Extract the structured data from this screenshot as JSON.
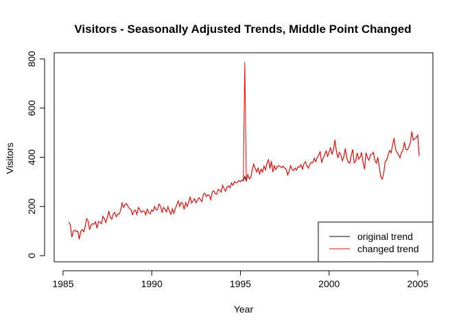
{
  "chart_data": {
    "type": "line",
    "title": "Visitors - Seasonally Adjusted Trends, Middle Point Changed",
    "xlabel": "Year",
    "ylabel": "Visitors",
    "xlim": [
      1984.5,
      2005.85
    ],
    "ylim": [
      -25,
      825
    ],
    "x_ticks": [
      1985,
      1990,
      1995,
      2000,
      2005
    ],
    "y_ticks": [
      0,
      200,
      400,
      600,
      800
    ],
    "grid": false,
    "legend_position": "bottom-right",
    "series": [
      {
        "name": "original trend",
        "color": "#000000",
        "start": 1985.33,
        "step": 0.08333,
        "values": [
          136,
          124,
          75,
          100,
          104,
          98,
          100,
          67,
          99,
          106,
          97,
          118,
          150,
          141,
          106,
          124,
          130,
          128,
          138,
          112,
          139,
          136,
          130,
          160,
          150,
          135,
          155,
          182,
          155,
          148,
          170,
          176,
          158,
          169,
          168,
          185,
          214,
          196,
          208,
          212,
          200,
          192,
          188,
          167,
          182,
          185,
          168,
          196,
          188,
          176,
          182,
          180,
          166,
          189,
          175,
          170,
          186,
          180,
          200,
          186,
          188,
          210,
          202,
          175,
          196,
          190,
          178,
          199,
          182,
          168,
          190,
          172,
          191,
          208,
          222,
          200,
          217,
          212,
          188,
          216,
          200,
          218,
          238,
          214,
          222,
          232,
          215,
          226,
          236,
          228,
          220,
          250,
          254,
          240,
          248,
          244,
          228,
          260,
          264,
          252,
          250,
          270,
          266,
          258,
          286,
          272,
          262,
          280,
          284,
          276,
          296,
          286,
          302,
          296,
          298,
          306,
          300,
          308,
          304,
          322,
          302,
          330,
          312,
          318,
          348,
          372,
          356,
          340,
          356,
          332,
          352,
          340,
          364,
          348,
          376,
          390,
          354,
          384,
          340,
          366,
          350,
          362,
          366,
          362,
          358,
          364,
          356,
          352,
          328,
          344,
          366,
          350,
          346,
          356,
          348,
          362,
          360,
          370,
          352,
          374,
          382,
          366,
          356,
          372,
          380,
          378,
          396,
          382,
          400,
          408,
          424,
          378,
          396,
          410,
          426,
          404,
          420,
          440,
          412,
          432,
          470,
          424,
          398,
          420,
          410,
          386,
          402,
          436,
          398,
          380,
          376,
          408,
          432,
          378,
          384,
          418,
          392,
          400,
          420,
          380,
          352,
          418,
          398,
          388,
          410,
          412,
          420,
          388,
          376,
          400,
          360,
          320,
          312,
          336,
          382,
          390,
          410,
          428,
          418,
          450,
          478,
          432,
          420,
          410,
          398,
          420,
          428,
          462,
          432,
          430,
          442,
          458,
          505,
          470,
          476,
          480,
          490,
          405
        ]
      },
      {
        "name": "changed trend",
        "color": "#ff0000",
        "start": 1985.33,
        "step": 0.08333,
        "spike_index": 119,
        "spike_value": 787
      }
    ]
  }
}
